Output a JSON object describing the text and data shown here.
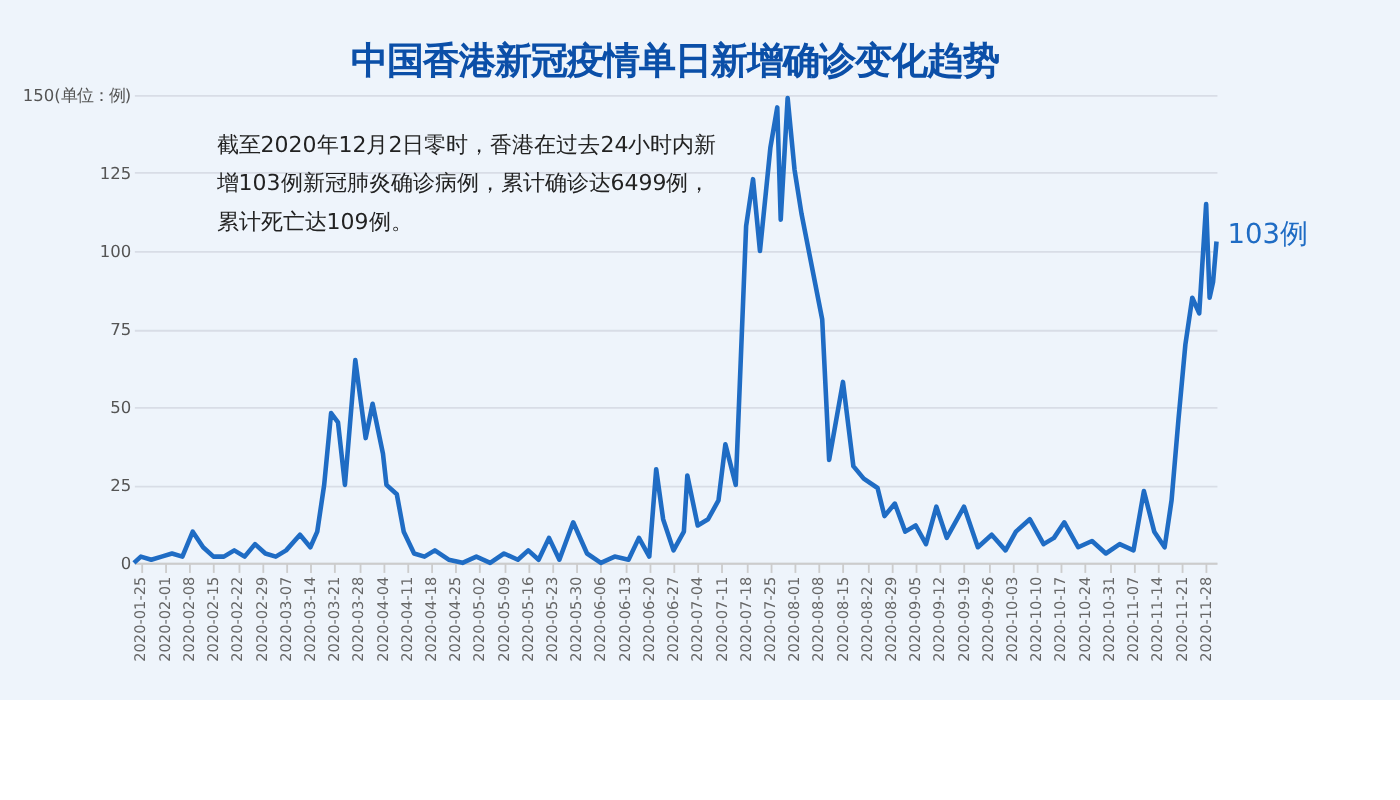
{
  "chart_data": {
    "type": "line",
    "title": "中国香港新冠疫情单日新增确诊变化趋势",
    "x": [
      "2020-01-23",
      "2020-01-25",
      "2020-01-28",
      "2020-01-31",
      "2020-02-03",
      "2020-02-06",
      "2020-02-09",
      "2020-02-12",
      "2020-02-15",
      "2020-02-18",
      "2020-02-21",
      "2020-02-24",
      "2020-02-27",
      "2020-03-01",
      "2020-03-04",
      "2020-03-07",
      "2020-03-11",
      "2020-03-14",
      "2020-03-16",
      "2020-03-18",
      "2020-03-20",
      "2020-03-22",
      "2020-03-24",
      "2020-03-27",
      "2020-03-30",
      "2020-04-01",
      "2020-04-04",
      "2020-04-05",
      "2020-04-08",
      "2020-04-10",
      "2020-04-13",
      "2020-04-16",
      "2020-04-19",
      "2020-04-23",
      "2020-04-27",
      "2020-05-01",
      "2020-05-05",
      "2020-05-09",
      "2020-05-13",
      "2020-05-16",
      "2020-05-19",
      "2020-05-22",
      "2020-05-25",
      "2020-05-29",
      "2020-06-02",
      "2020-06-06",
      "2020-06-10",
      "2020-06-14",
      "2020-06-17",
      "2020-06-20",
      "2020-06-22",
      "2020-06-24",
      "2020-06-27",
      "2020-06-30",
      "2020-07-01",
      "2020-07-04",
      "2020-07-07",
      "2020-07-10",
      "2020-07-12",
      "2020-07-15",
      "2020-07-18",
      "2020-07-20",
      "2020-07-22",
      "2020-07-25",
      "2020-07-27",
      "2020-07-28",
      "2020-07-30",
      "2020-08-01",
      "2020-08-03",
      "2020-08-06",
      "2020-08-09",
      "2020-08-11",
      "2020-08-15",
      "2020-08-18",
      "2020-08-21",
      "2020-08-25",
      "2020-08-27",
      "2020-08-30",
      "2020-09-02",
      "2020-09-05",
      "2020-09-08",
      "2020-09-11",
      "2020-09-14",
      "2020-09-19",
      "2020-09-23",
      "2020-09-27",
      "2020-10-01",
      "2020-10-04",
      "2020-10-08",
      "2020-10-12",
      "2020-10-15",
      "2020-10-18",
      "2020-10-22",
      "2020-10-26",
      "2020-10-30",
      "2020-11-03",
      "2020-11-07",
      "2020-11-10",
      "2020-11-13",
      "2020-11-16",
      "2020-11-18",
      "2020-11-20",
      "2020-11-22",
      "2020-11-24",
      "2020-11-26",
      "2020-11-28",
      "2020-11-29",
      "2020-11-30",
      "2020-12-01"
    ],
    "series": [
      {
        "color": "#1f6cc4",
        "values": [
          0,
          2,
          1,
          2,
          3,
          2,
          10,
          5,
          2,
          2,
          4,
          2,
          6,
          3,
          2,
          4,
          9,
          5,
          10,
          25,
          48,
          45,
          25,
          65,
          40,
          51,
          35,
          25,
          22,
          10,
          3,
          2,
          4,
          1,
          0,
          2,
          0,
          3,
          1,
          4,
          1,
          8,
          1,
          13,
          3,
          0,
          2,
          1,
          8,
          2,
          30,
          14,
          4,
          10,
          28,
          12,
          14,
          20,
          38,
          25,
          108,
          123,
          100,
          133,
          146,
          110,
          149,
          126,
          112,
          95,
          78,
          33,
          58,
          31,
          27,
          24,
          15,
          19,
          10,
          12,
          6,
          18,
          8,
          18,
          5,
          9,
          4,
          10,
          14,
          6,
          8,
          13,
          5,
          7,
          3,
          6,
          4,
          23,
          10,
          5,
          20,
          46,
          70,
          85,
          80,
          115,
          85,
          90,
          103
        ]
      }
    ],
    "xlim": [
      "2020-01-23",
      "2020-12-01"
    ],
    "xticks": [
      "2020-01-25",
      "2020-02-01",
      "2020-02-08",
      "2020-02-15",
      "2020-02-22",
      "2020-02-29",
      "2020-03-07",
      "2020-03-14",
      "2020-03-21",
      "2020-03-28",
      "2020-04-04",
      "2020-04-11",
      "2020-04-18",
      "2020-04-25",
      "2020-05-02",
      "2020-05-09",
      "2020-05-16",
      "2020-05-23",
      "2020-05-30",
      "2020-06-06",
      "2020-06-13",
      "2020-06-20",
      "2020-06-27",
      "2020-07-04",
      "2020-07-11",
      "2020-07-18",
      "2020-07-25",
      "2020-08-01",
      "2020-08-08",
      "2020-08-15",
      "2020-08-22",
      "2020-08-29",
      "2020-09-05",
      "2020-09-12",
      "2020-09-19",
      "2020-09-26",
      "2020-10-03",
      "2020-10-10",
      "2020-10-17",
      "2020-10-24",
      "2020-10-31",
      "2020-11-07",
      "2020-11-14",
      "2020-11-21",
      "2020-11-28"
    ],
    "ylim": [
      0,
      150
    ],
    "yticks": [
      0,
      25,
      50,
      75,
      100,
      125,
      {
        "value": 150,
        "label": "150(单位：例)"
      }
    ],
    "grid": "y",
    "marker": "none",
    "line_style": "solid",
    "annotations": [
      "截至2020年12月2日零时，香港在过去24小时内新",
      "增103例新冠肺炎确诊病例，累计确诊达6499例，",
      "累计死亡达109例。",
      {
        "text": "103例",
        "x": "2020-12-01",
        "y": 103
      }
    ]
  }
}
